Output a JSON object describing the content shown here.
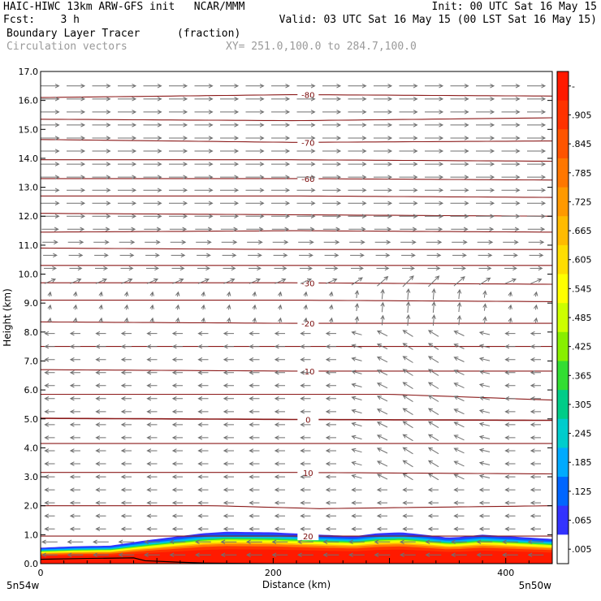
{
  "header": {
    "line1_left": "HAIC-HIWC 13km ARW-GFS init   NCAR/MMM",
    "line1_right": "Init: 00 UTC Sat 16 May 15",
    "line2_left": "Fcst:    3 h",
    "line2_right": "Valid: 03 UTC Sat 16 May 15 (00 LST Sat 16 May 15)",
    "line3_field": "Boundary Layer Tracer",
    "line3_units": "(fraction)",
    "line4_field": "Circulation vectors",
    "line4_xy": "XY= 251.0,100.0 to 284.7,100.0"
  },
  "colors": {
    "contour": "#8b1a1a",
    "vector": "#707070",
    "ground": "#000000"
  },
  "chart_data": {
    "type": "heatmap",
    "xlabel": "Distance (km)",
    "ylabel": "Height (km)",
    "xlim": [
      0,
      440
    ],
    "ylim": [
      0,
      17
    ],
    "x_ticks": [
      {
        "value": 0,
        "label": "0"
      },
      {
        "value": 200,
        "label": "200"
      },
      {
        "value": 400,
        "label": "400"
      }
    ],
    "x_end_labels": {
      "left": "5n54w",
      "right": "5n50w"
    },
    "y_ticks": [
      "0.0",
      "1.0",
      "2.0",
      "3.0",
      "4.0",
      "5.0",
      "6.0",
      "7.0",
      "8.0",
      "9.0",
      "10.0",
      "11.0",
      "12.0",
      "13.0",
      "14.0",
      "15.0",
      "16.0",
      "17.0"
    ],
    "colorbar": {
      "labels": [
        "-",
        ".905",
        ".845",
        ".785",
        ".725",
        ".665",
        ".605",
        ".545",
        ".485",
        ".425",
        ".365",
        ".305",
        ".245",
        ".185",
        ".125",
        ".065",
        ".005"
      ],
      "colors": [
        "#ff1a00",
        "#ff3300",
        "#ff5500",
        "#ff7700",
        "#ff9900",
        "#ffbb00",
        "#ffdd00",
        "#ffff00",
        "#ccff00",
        "#88ee00",
        "#33dd33",
        "#00cc88",
        "#00cccc",
        "#00aaff",
        "#0066ff",
        "#3333ff",
        "#ffffff"
      ]
    },
    "tracer_layer_top_km": {
      "x": [
        0,
        30,
        60,
        90,
        120,
        140,
        160,
        200,
        240,
        270,
        290,
        310,
        330,
        350,
        360,
        380,
        400,
        420,
        440
      ],
      "top": [
        0.55,
        0.6,
        0.62,
        0.8,
        0.95,
        1.05,
        1.1,
        1.08,
        1.0,
        0.95,
        1.05,
        1.08,
        1.0,
        0.9,
        0.92,
        1.0,
        0.95,
        0.9,
        0.85
      ]
    },
    "ground_height_km": {
      "x": [
        0,
        40,
        80,
        90,
        120,
        140,
        200,
        280,
        440
      ],
      "z": [
        0.15,
        0.18,
        0.2,
        0.1,
        0.05,
        0.02,
        0.0,
        0.0,
        0.0
      ]
    },
    "temperature_contours": [
      {
        "label": "-80",
        "x": [
          0,
          220,
          440
        ],
        "z": [
          16.1,
          16.2,
          16.15
        ]
      },
      {
        "label": "",
        "x": [
          0,
          220,
          440
        ],
        "z": [
          15.35,
          15.3,
          15.4
        ]
      },
      {
        "label": "-70",
        "x": [
          0,
          220,
          440
        ],
        "z": [
          14.65,
          14.55,
          14.6
        ]
      },
      {
        "label": "",
        "x": [
          0,
          220,
          440
        ],
        "z": [
          13.95,
          13.95,
          13.9
        ]
      },
      {
        "label": "-60",
        "x": [
          0,
          220,
          440
        ],
        "z": [
          13.3,
          13.3,
          13.25
        ]
      },
      {
        "label": "",
        "x": [
          0,
          220,
          440
        ],
        "z": [
          12.7,
          12.7,
          12.65
        ]
      },
      {
        "label": "",
        "x": [
          0,
          220,
          440
        ],
        "z": [
          12.1,
          12.05,
          12.0
        ]
      },
      {
        "label": "",
        "x": [
          0,
          220,
          440
        ],
        "z": [
          11.45,
          11.5,
          11.45
        ]
      },
      {
        "label": "",
        "x": [
          0,
          220,
          440
        ],
        "z": [
          10.9,
          10.85,
          10.85
        ]
      },
      {
        "label": "",
        "x": [
          0,
          220,
          440
        ],
        "z": [
          10.3,
          10.3,
          10.3
        ]
      },
      {
        "label": "-30",
        "x": [
          0,
          220,
          440
        ],
        "z": [
          9.7,
          9.7,
          9.65
        ]
      },
      {
        "label": "",
        "x": [
          0,
          220,
          440
        ],
        "z": [
          9.1,
          9.1,
          9.05
        ]
      },
      {
        "label": "-20",
        "x": [
          0,
          220,
          440
        ],
        "z": [
          8.35,
          8.3,
          8.3
        ]
      },
      {
        "label": "",
        "x": [
          0,
          220,
          440
        ],
        "z": [
          7.5,
          7.5,
          7.5
        ]
      },
      {
        "label": "-10",
        "x": [
          0,
          220,
          440
        ],
        "z": [
          6.7,
          6.65,
          6.65
        ]
      },
      {
        "label": "",
        "x": [
          0,
          220,
          300,
          440
        ],
        "z": [
          5.85,
          5.85,
          5.85,
          5.65
        ]
      },
      {
        "label": "0",
        "x": [
          0,
          220,
          440
        ],
        "z": [
          5.02,
          4.98,
          4.95
        ]
      },
      {
        "label": "",
        "x": [
          0,
          220,
          440
        ],
        "z": [
          4.15,
          4.15,
          4.15
        ]
      },
      {
        "label": "10",
        "x": [
          0,
          220,
          440
        ],
        "z": [
          3.15,
          3.15,
          3.1
        ]
      },
      {
        "label": "",
        "x": [
          0,
          150,
          240,
          440
        ],
        "z": [
          2.0,
          2.0,
          1.9,
          2.0
        ]
      },
      {
        "label": "20",
        "x": [
          0,
          220,
          440
        ],
        "z": [
          0.95,
          0.95,
          0.95
        ]
      }
    ],
    "vector_field": {
      "x_spacing_km": 22,
      "z_spacing_km": 0.45,
      "scale_note": "circulation vectors, arrows point in flow direction"
    }
  }
}
